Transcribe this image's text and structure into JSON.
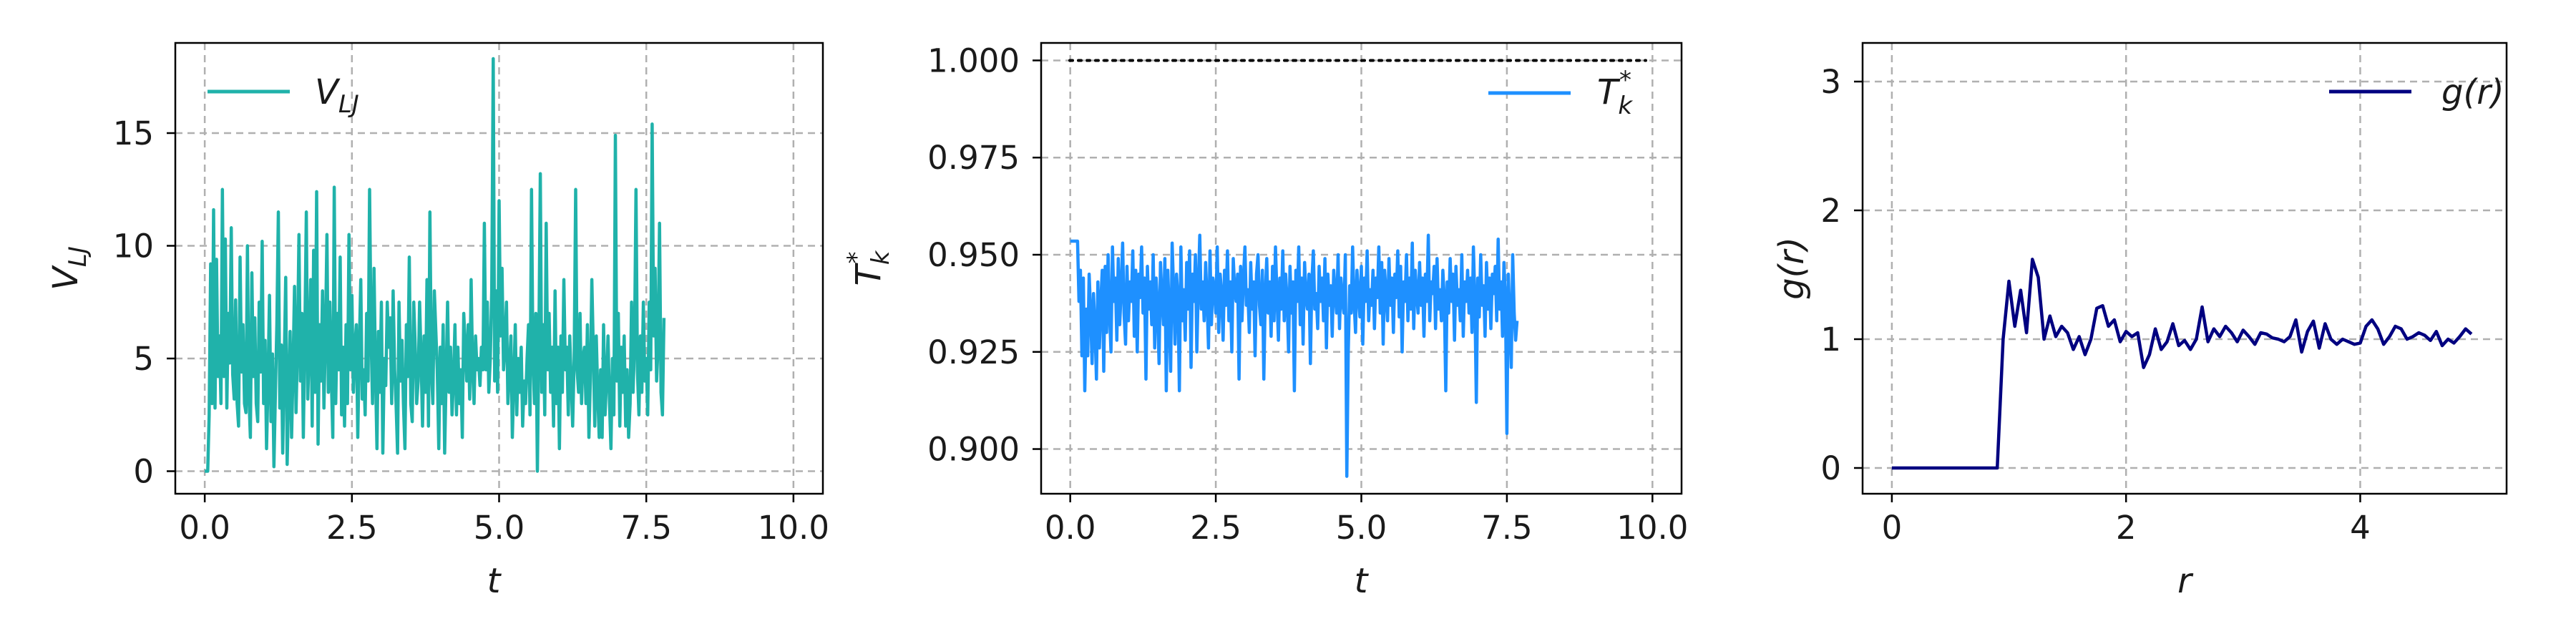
{
  "chart_data": [
    {
      "type": "line",
      "xlabel": "t",
      "ylabel": "V_LJ",
      "xlim": [
        -0.5,
        10.5
      ],
      "ylim": [
        -1,
        19
      ],
      "xticks": [
        0,
        2.5,
        5,
        7.5,
        10
      ],
      "xtick_labels": [
        "0.0",
        "2.5",
        "5.0",
        "7.5",
        "10.0"
      ],
      "yticks": [
        0,
        5,
        10,
        15
      ],
      "ytick_labels": [
        "0",
        "5",
        "10",
        "15"
      ],
      "grid": true,
      "legend_position": "top-left",
      "series": [
        {
          "name": "V_LJ",
          "color": "#20b2aa",
          "x_start": 0,
          "x_step": 0.025,
          "values": [
            0.0,
            0.0,
            0.0,
            2.5,
            9.2,
            3.0,
            11.6,
            2.8,
            9.4,
            4.2,
            6.0,
            3.0,
            12.5,
            4.2,
            10.3,
            2.8,
            7.0,
            4.8,
            10.8,
            4.3,
            3.2,
            7.6,
            3.0,
            2.0,
            9.5,
            4.4,
            6.5,
            3.0,
            2.6,
            10.0,
            3.4,
            1.5,
            8.8,
            4.2,
            6.8,
            3.0,
            2.2,
            7.5,
            4.4,
            10.2,
            3.0,
            5.8,
            1.0,
            4.0,
            7.8,
            2.2,
            5.2,
            0.2,
            3.5,
            6.5,
            11.5,
            2.8,
            5.6,
            0.8,
            4.8,
            8.6,
            0.3,
            3.5,
            6.2,
            1.5,
            4.5,
            8.2,
            2.6,
            5.5,
            10.5,
            4.0,
            7.0,
            1.5,
            6.0,
            11.5,
            3.2,
            5.5,
            8.5,
            2.0,
            9.8,
            3.5,
            12.4,
            1.2,
            6.5,
            4.0,
            8.0,
            2.8,
            6.0,
            10.5,
            3.5,
            7.5,
            4.2,
            1.5,
            12.6,
            3.0,
            7.0,
            4.5,
            9.5,
            2.5,
            5.5,
            2.0,
            6.5,
            3.0,
            10.5,
            4.5,
            7.8,
            3.5,
            5.5,
            6.5,
            1.5,
            5.5,
            8.5,
            3.2,
            4.5,
            2.5,
            7.0,
            4.0,
            12.5,
            6.0,
            3.0,
            9.0,
            4.5,
            1.0,
            6.2,
            3.5,
            7.5,
            0.8,
            5.0,
            3.8,
            7.5,
            5.5,
            6.8,
            3.0,
            8.0,
            4.5,
            3.0,
            0.8,
            7.5,
            4.0,
            5.8,
            3.0,
            1.0,
            6.5,
            4.2,
            9.5,
            3.0,
            2.2,
            7.5,
            5.5,
            3.0,
            4.0,
            7.5,
            5.0,
            2.0,
            6.0,
            3.5,
            8.5,
            2.0,
            11.5,
            4.5,
            3.0,
            8.0,
            6.2,
            4.5,
            1.0,
            5.5,
            3.0,
            6.5,
            0.8,
            4.2,
            7.5,
            3.5,
            5.5,
            2.5,
            4.0,
            6.5,
            2.5,
            5.5,
            3.0,
            4.5,
            1.5,
            7.0,
            5.5,
            4.0,
            6.5,
            3.2,
            8.5,
            4.5,
            3.0,
            6.0,
            4.5,
            5.0,
            3.8,
            5.5,
            4.5,
            11.0,
            4.5,
            7.5,
            3.5,
            5.0,
            8.0,
            18.3,
            4.0,
            8.0,
            3.5,
            12.0,
            6.0,
            9.0,
            4.5,
            5.5,
            7.5,
            3.0,
            4.5,
            6.0,
            1.5,
            4.0,
            6.5,
            2.5,
            5.0,
            3.5,
            5.5,
            2.0,
            4.0,
            3.0,
            5.0,
            6.5,
            2.5,
            12.5,
            5.0,
            3.0,
            7.0,
            0.0,
            5.5,
            13.2,
            3.5,
            6.5,
            2.5,
            11.0,
            4.5,
            7.0,
            3.5,
            5.5,
            2.0,
            8.0,
            3.0,
            5.5,
            1.0,
            6.0,
            3.5,
            8.5,
            4.5,
            5.5,
            2.5,
            6.0,
            4.0,
            2.0,
            5.0,
            12.5,
            4.5,
            3.5,
            7.0,
            3.0,
            5.0,
            5.5,
            3.0,
            6.5,
            1.5,
            4.0,
            8.5,
            5.5,
            2.0,
            6.0,
            3.5,
            1.5,
            4.5,
            1.5,
            6.5,
            2.5,
            4.0,
            6.0,
            3.0,
            1.0,
            5.0,
            2.5,
            14.9,
            4.0,
            7.0,
            2.0,
            5.5,
            3.5,
            6.0,
            2.0,
            4.5,
            1.5,
            3.0,
            7.5,
            3.5,
            5.5,
            12.5,
            4.5,
            2.5,
            6.0,
            3.5,
            7.5,
            4.0,
            5.0,
            2.5,
            7.5,
            4.5,
            15.4,
            6.0,
            9.0,
            4.0,
            5.5,
            11.0,
            3.5,
            2.5,
            6.8
          ]
        }
      ]
    },
    {
      "type": "line",
      "xlabel": "t",
      "ylabel": "T_k*",
      "xlim": [
        -0.5,
        10.5
      ],
      "ylim": [
        0.8885,
        1.0045
      ],
      "xticks": [
        0,
        2.5,
        5,
        7.5,
        10
      ],
      "xtick_labels": [
        "0.0",
        "2.5",
        "5.0",
        "7.5",
        "10.0"
      ],
      "yticks": [
        0.9,
        0.925,
        0.95,
        0.975,
        1.0
      ],
      "ytick_labels": [
        "0.900",
        "0.925",
        "0.950",
        "0.975",
        "1.000"
      ],
      "grid": true,
      "legend_position": "top-right",
      "reference_line": {
        "y": 1.0,
        "x_range": [
          -0.5,
          10.5
        ],
        "color": "#000000",
        "style": "dotted"
      },
      "series": [
        {
          "name": "T_k*",
          "color": "#1e90ff",
          "x_start": 0,
          "x_step": 0.025,
          "values": [
            0.9535,
            0.9535,
            0.9535,
            0.9535,
            0.9535,
            0.9535,
            0.938,
            0.946,
            0.924,
            0.944,
            0.915,
            0.936,
            0.924,
            0.945,
            0.935,
            0.922,
            0.94,
            0.931,
            0.918,
            0.943,
            0.926,
            0.938,
            0.946,
            0.92,
            0.947,
            0.93,
            0.95,
            0.935,
            0.925,
            0.952,
            0.938,
            0.944,
            0.928,
            0.949,
            0.932,
            0.941,
            0.953,
            0.935,
            0.927,
            0.947,
            0.933,
            0.943,
            0.938,
            0.951,
            0.929,
            0.946,
            0.925,
            0.945,
            0.939,
            0.952,
            0.935,
            0.944,
            0.918,
            0.947,
            0.936,
            0.943,
            0.932,
            0.95,
            0.926,
            0.944,
            0.937,
            0.922,
            0.948,
            0.939,
            0.932,
            0.949,
            0.915,
            0.946,
            0.935,
            0.92,
            0.953,
            0.941,
            0.927,
            0.945,
            0.939,
            0.915,
            0.952,
            0.933,
            0.941,
            0.928,
            0.948,
            0.936,
            0.951,
            0.921,
            0.945,
            0.938,
            0.95,
            0.925,
            0.942,
            0.955,
            0.936,
            0.943,
            0.933,
            0.948,
            0.938,
            0.926,
            0.951,
            0.932,
            0.944,
            0.941,
            0.935,
            0.952,
            0.93,
            0.945,
            0.94,
            0.928,
            0.946,
            0.937,
            0.951,
            0.933,
            0.943,
            0.925,
            0.949,
            0.941,
            0.938,
            0.945,
            0.918,
            0.947,
            0.933,
            0.944,
            0.952,
            0.937,
            0.941,
            0.93,
            0.948,
            0.936,
            0.943,
            0.924,
            0.945,
            0.95,
            0.937,
            0.932,
            0.946,
            0.918,
            0.94,
            0.949,
            0.935,
            0.943,
            0.929,
            0.947,
            0.933,
            0.952,
            0.94,
            0.928,
            0.944,
            0.936,
            0.951,
            0.933,
            0.945,
            0.938,
            0.925,
            0.947,
            0.935,
            0.943,
            0.915,
            0.946,
            0.938,
            0.952,
            0.932,
            0.944,
            0.927,
            0.948,
            0.939,
            0.936,
            0.945,
            0.922,
            0.943,
            0.951,
            0.936,
            0.94,
            0.931,
            0.947,
            0.938,
            0.944,
            0.933,
            0.949,
            0.926,
            0.945,
            0.937,
            0.942,
            0.929,
            0.946,
            0.94,
            0.935,
            0.95,
            0.931,
            0.944,
            0.938,
            0.935,
            0.95,
            0.893,
            0.925,
            0.942,
            0.935,
            0.952,
            0.938,
            0.93,
            0.946,
            0.94,
            0.934,
            0.947,
            0.927,
            0.944,
            0.938,
            0.951,
            0.933,
            0.941,
            0.937,
            0.946,
            0.931,
            0.944,
            0.939,
            0.952,
            0.935,
            0.948,
            0.927,
            0.946,
            0.94,
            0.933,
            0.949,
            0.937,
            0.944,
            0.93,
            0.945,
            0.939,
            0.951,
            0.934,
            0.947,
            0.925,
            0.943,
            0.938,
            0.95,
            0.933,
            0.944,
            0.936,
            0.953,
            0.931,
            0.946,
            0.94,
            0.935,
            0.948,
            0.937,
            0.944,
            0.929,
            0.945,
            0.938,
            0.955,
            0.933,
            0.943,
            0.94,
            0.947,
            0.931,
            0.949,
            0.936,
            0.941,
            0.933,
            0.946,
            0.939,
            0.915,
            0.943,
            0.935,
            0.949,
            0.938,
            0.945,
            0.928,
            0.947,
            0.937,
            0.941,
            0.933,
            0.95,
            0.929,
            0.943,
            0.938,
            0.946,
            0.935,
            0.944,
            0.93,
            0.952,
            0.938,
            0.912,
            0.944,
            0.934,
            0.95,
            0.937,
            0.942,
            0.929,
            0.948,
            0.936,
            0.944,
            0.931,
            0.945,
            0.94,
            0.947,
            0.933,
            0.954,
            0.936,
            0.943,
            0.929,
            0.948,
            0.938,
            0.904,
            0.945,
            0.933,
            0.921,
            0.95,
            0.935,
            0.928,
            0.933
          ]
        }
      ]
    },
    {
      "type": "line",
      "xlabel": "r",
      "ylabel": "g(r)",
      "xlim": [
        -0.25,
        5.25
      ],
      "ylim": [
        -0.2,
        3.3
      ],
      "xticks": [
        0,
        2,
        4
      ],
      "xtick_labels": [
        "0",
        "2",
        "4"
      ],
      "yticks": [
        0,
        1,
        2,
        3
      ],
      "ytick_labels": [
        "0",
        "1",
        "2",
        "3"
      ],
      "grid": true,
      "legend_position": "top-right",
      "series": [
        {
          "name": "g(r)",
          "color": "#000080",
          "x": [
            0.0,
            0.9,
            0.95,
            1.0,
            1.05,
            1.1,
            1.15,
            1.2,
            1.25,
            1.3,
            1.35,
            1.4,
            1.45,
            1.5,
            1.55,
            1.6,
            1.65,
            1.7,
            1.75,
            1.8,
            1.85,
            1.9,
            1.95,
            2.0,
            2.05,
            2.1,
            2.15,
            2.2,
            2.25,
            2.3,
            2.35,
            2.4,
            2.45,
            2.5,
            2.55,
            2.6,
            2.65,
            2.7,
            2.75,
            2.8,
            2.85,
            2.9,
            2.95,
            3.0,
            3.05,
            3.1,
            3.15,
            3.2,
            3.25,
            3.3,
            3.35,
            3.4,
            3.45,
            3.5,
            3.55,
            3.6,
            3.65,
            3.7,
            3.75,
            3.8,
            3.85,
            3.9,
            3.95,
            4.0,
            4.05,
            4.1,
            4.15,
            4.2,
            4.25,
            4.3,
            4.35,
            4.4,
            4.45,
            4.5,
            4.55,
            4.6,
            4.65,
            4.7,
            4.75,
            4.8,
            4.85,
            4.9,
            4.95
          ],
          "values": [
            0.0,
            0.0,
            1.0,
            1.45,
            1.1,
            1.38,
            1.05,
            1.62,
            1.48,
            1.0,
            1.18,
            1.02,
            1.1,
            1.05,
            0.92,
            1.02,
            0.88,
            1.0,
            1.24,
            1.26,
            1.1,
            1.15,
            0.98,
            1.06,
            1.02,
            1.05,
            0.78,
            0.88,
            1.08,
            0.92,
            0.98,
            1.12,
            0.95,
            0.99,
            0.92,
            1.0,
            1.25,
            0.98,
            1.08,
            1.02,
            1.1,
            1.05,
            0.98,
            1.07,
            1.02,
            0.96,
            1.05,
            1.04,
            1.01,
            1.0,
            0.98,
            1.02,
            1.15,
            0.9,
            1.06,
            1.14,
            0.93,
            1.12,
            1.0,
            0.96,
            1.0,
            0.98,
            0.96,
            0.97,
            1.1,
            1.15,
            1.08,
            0.96,
            1.02,
            1.1,
            1.08,
            1.0,
            1.02,
            1.05,
            1.03,
            0.99,
            1.06,
            0.95,
            1.0,
            0.97,
            1.02,
            1.08,
            1.04
          ]
        }
      ]
    }
  ],
  "panels": [
    {
      "xlabel": "t",
      "ylabel_main": "V",
      "ylabel_sub": "LJ",
      "legend": {
        "main": "V",
        "sub": "LJ"
      },
      "xticks": [
        "0.0",
        "2.5",
        "5.0",
        "7.5",
        "10.0"
      ],
      "yticks": [
        "0",
        "5",
        "10",
        "15"
      ]
    },
    {
      "xlabel": "t",
      "ylabel_main": "T",
      "ylabel_sub": "k",
      "ylabel_sup": "*",
      "legend": {
        "main": "T",
        "sub": "k",
        "sup": "*"
      },
      "xticks": [
        "0.0",
        "2.5",
        "5.0",
        "7.5",
        "10.0"
      ],
      "yticks": [
        "0.900",
        "0.925",
        "0.950",
        "0.975",
        "1.000"
      ]
    },
    {
      "xlabel": "r",
      "ylabel_main": "g(r)",
      "legend": {
        "main": "g(r)"
      },
      "xticks": [
        "0",
        "2",
        "4"
      ],
      "yticks": [
        "0",
        "1",
        "2",
        "3"
      ]
    }
  ]
}
